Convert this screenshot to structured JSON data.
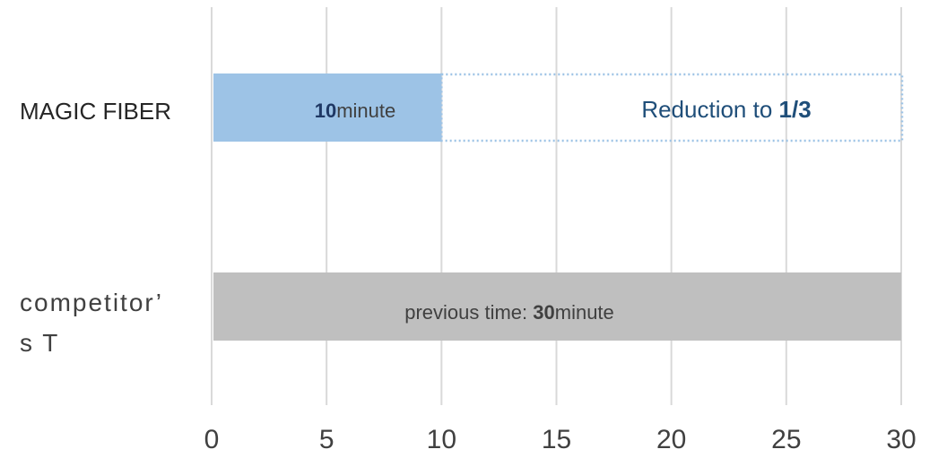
{
  "chart_data": {
    "type": "bar",
    "orientation": "horizontal",
    "categories": [
      "MAGIC FIBER",
      "competitor’s T"
    ],
    "category_lines": [
      [
        "MAGIC FIBER"
      ],
      [
        "competitor’",
        "s T"
      ]
    ],
    "series": [
      {
        "values": [
          10,
          30
        ]
      }
    ],
    "target_outline": {
      "category": "MAGIC FIBER",
      "start": 10,
      "end": 30
    },
    "xlim": [
      0,
      30
    ],
    "xticks": [
      0,
      5,
      10,
      15,
      20,
      25,
      30
    ],
    "grid": true,
    "annotations": {
      "magic_value": {
        "bold": "10",
        "rest": "minute"
      },
      "reduction": {
        "prefix": "Reduction to ",
        "value": "1/3"
      },
      "previous": {
        "prefix": "previous time: ",
        "bold": "30",
        "rest": "minute"
      }
    },
    "colors": {
      "magic_bar": "#9dc3e6",
      "competitor_bar": "#bfbfbf",
      "outline": "#9dc3e6",
      "grid": "#d9d9d9"
    }
  }
}
